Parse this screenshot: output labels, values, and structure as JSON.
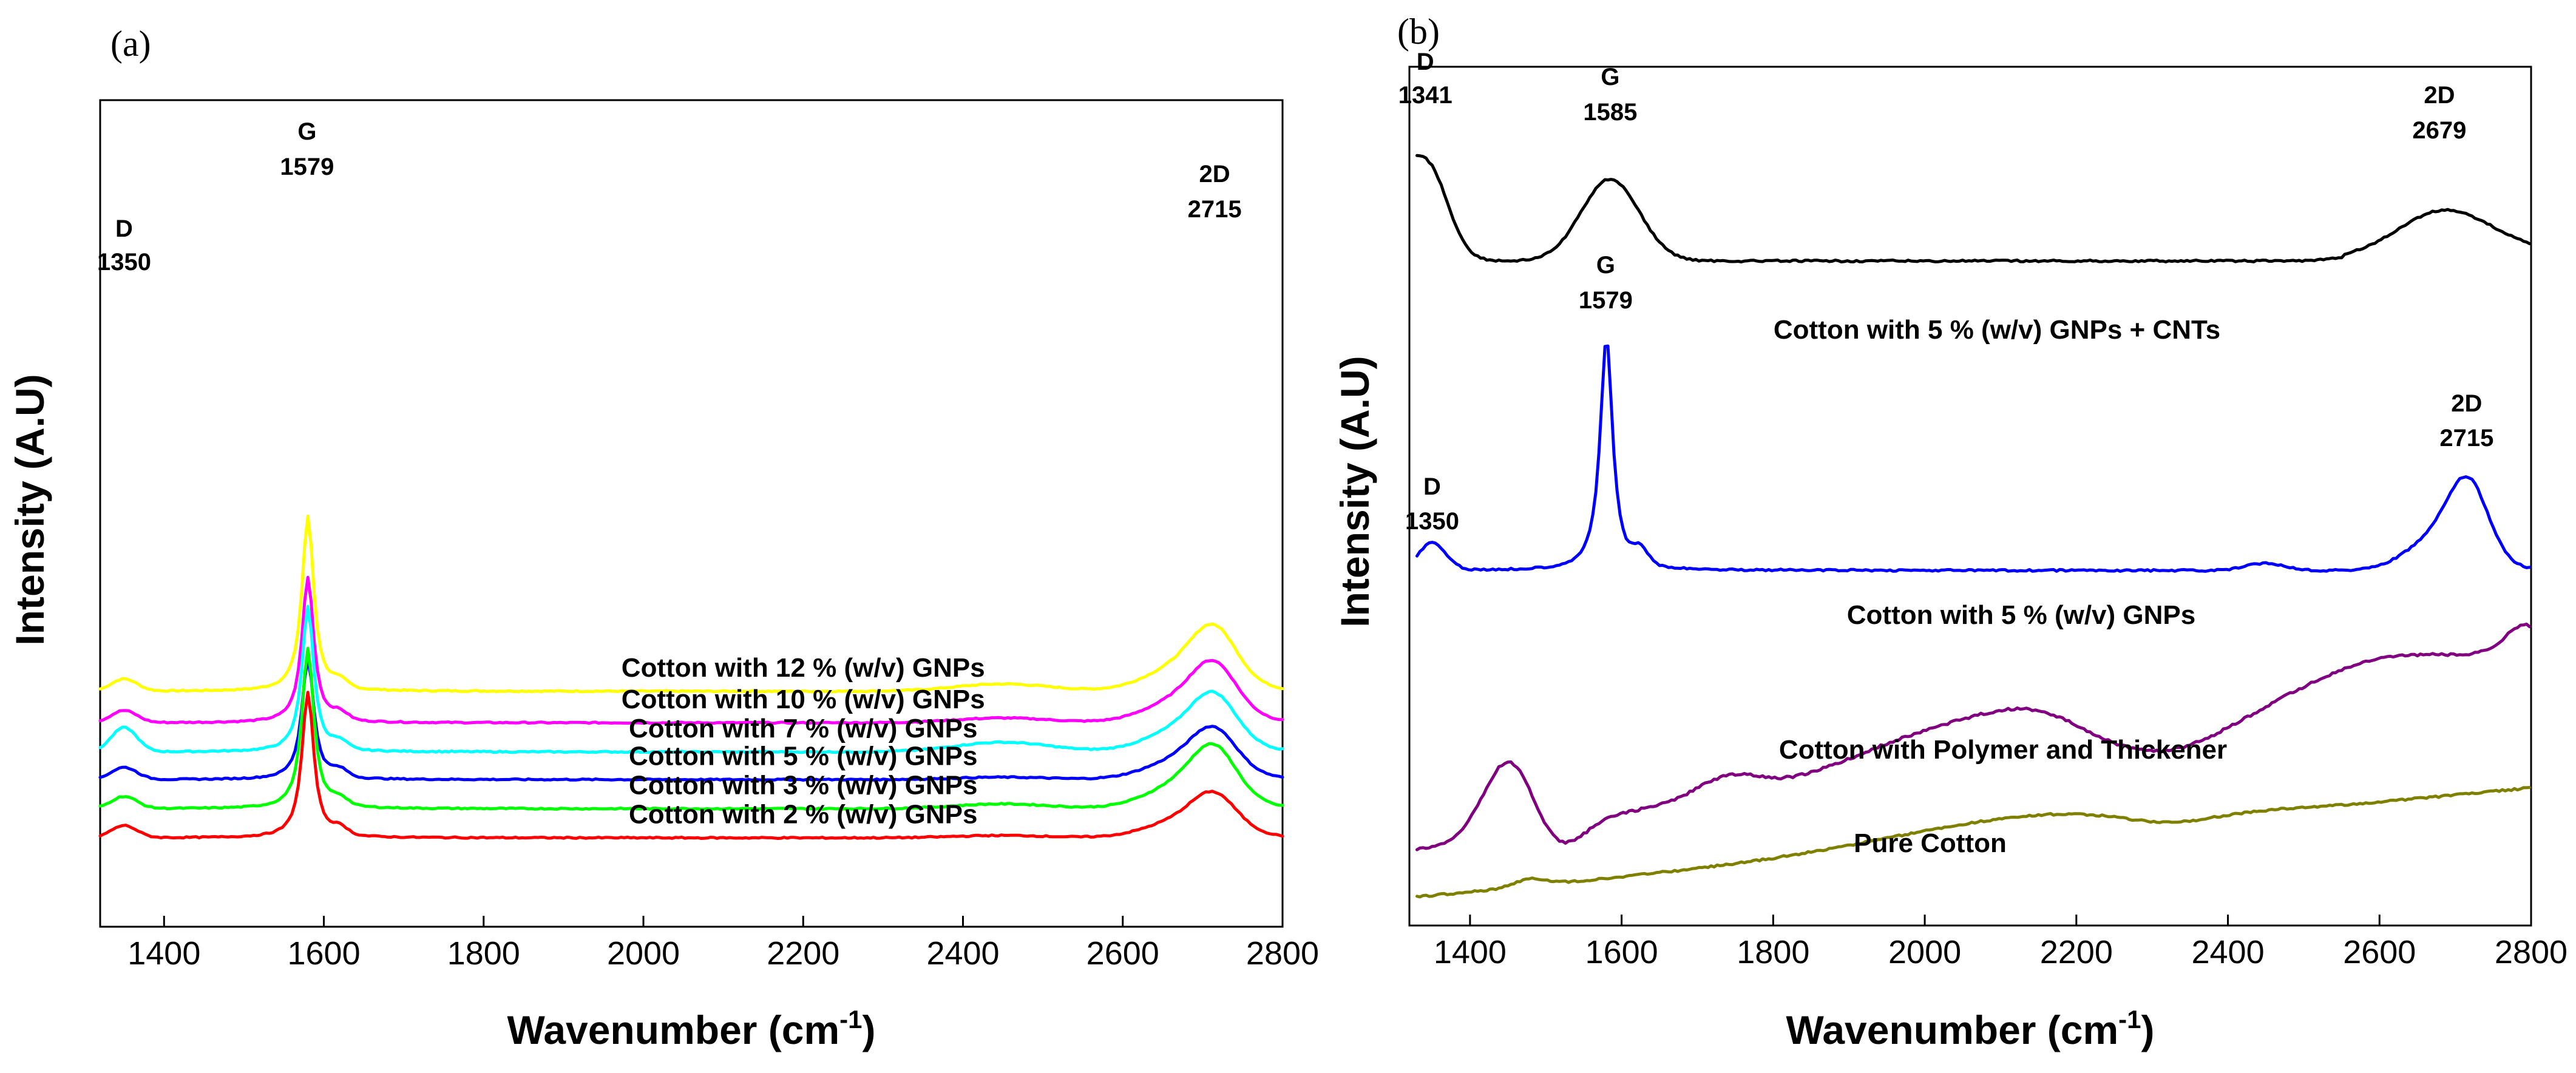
{
  "chart_data": [
    {
      "type": "line",
      "panel_label": "(a)",
      "xlabel": "Wavenumber (cm",
      "xlabel_sup": "-1",
      "xlabel_tail": ")",
      "ylabel": "Intensity (A.U)",
      "xlim": [
        1320,
        2800
      ],
      "xticks": [
        1400,
        1600,
        1800,
        2000,
        2200,
        2400,
        2600,
        2800
      ],
      "y_ticks_visible": false,
      "grid": false,
      "peak_labels": [
        {
          "letter": "D",
          "value": "1350",
          "x": 1350
        },
        {
          "letter": "G",
          "value": "1579",
          "x": 1579
        },
        {
          "letter": "2D",
          "value": "2715",
          "x": 2715
        }
      ],
      "series": [
        {
          "name": "Cotton with 12 % (w/v) GNPs",
          "color": "#ffff00",
          "baseline": 3.2,
          "d": 0.25,
          "g": 3.6,
          "twoD": 1.45,
          "broad": 0.15
        },
        {
          "name": "Cotton with 10 % (w/v) GNPs",
          "color": "#ff00ff",
          "baseline": 2.55,
          "d": 0.25,
          "g": 3.0,
          "twoD": 1.35,
          "broad": 0.1
        },
        {
          "name": "Cotton with 7 % (w/v) GNPs",
          "color": "#00ffff",
          "baseline": 1.95,
          "d": 0.5,
          "g": 3.0,
          "twoD": 1.3,
          "broad": 0.2
        },
        {
          "name": "Cotton with 5 % (w/v) GNPs",
          "color": "#0000ff",
          "baseline": 1.38,
          "d": 0.25,
          "g": 2.5,
          "twoD": 1.15,
          "broad": 0.05
        },
        {
          "name": "Cotton with 3 % (w/v) GNPs",
          "color": "#00ff00",
          "baseline": 0.78,
          "d": 0.25,
          "g": 3.3,
          "twoD": 1.4,
          "broad": 0.1
        },
        {
          "name": "Cotton with 2 % (w/v) GNPs",
          "color": "#ff0000",
          "baseline": 0.18,
          "d": 0.25,
          "g": 3.0,
          "twoD": 1.0,
          "broad": 0.05
        }
      ]
    },
    {
      "type": "line",
      "panel_label": "(b)",
      "xlabel": "Wavenumber (cm",
      "xlabel_sup": "-1",
      "xlabel_tail": ")",
      "ylabel": "Intensity (A.U)",
      "xlim": [
        1320,
        2800
      ],
      "xticks": [
        1400,
        1600,
        1800,
        2000,
        2200,
        2400,
        2600,
        2800
      ],
      "y_ticks_visible": false,
      "grid": false,
      "peak_labels_top": [
        {
          "letter": "D",
          "value": "1341",
          "x": 1341
        },
        {
          "letter": "G",
          "value": "1585",
          "x": 1585
        },
        {
          "letter": "2D",
          "value": "2679",
          "x": 2679
        }
      ],
      "peak_labels_mid": [
        {
          "letter": "D",
          "value": "1350",
          "x": 1350
        },
        {
          "letter": "G",
          "value": "1579",
          "x": 1579
        },
        {
          "letter": "2D",
          "value": "2715",
          "x": 2715
        }
      ],
      "series": [
        {
          "name": "Cotton with 5 % (w/v) GNPs + CNTs",
          "color": "#000000"
        },
        {
          "name": "Cotton with 5 % (w/v) GNPs",
          "color": "#0000ff"
        },
        {
          "name": "Cotton with Polymer and Thickener",
          "color": "#800080"
        },
        {
          "name": "Pure Cotton",
          "color": "#808000"
        }
      ]
    }
  ]
}
